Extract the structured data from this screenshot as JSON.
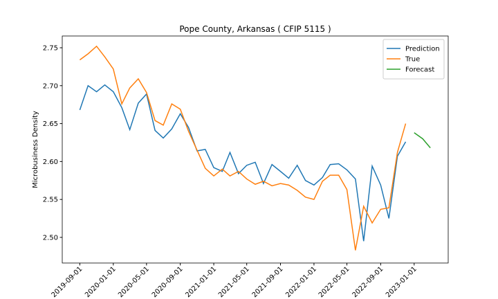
{
  "chart_data": {
    "type": "line",
    "title": "Pope County, Arkansas ( CFIP 5115 )",
    "y_label": "Microbusiness Density",
    "x": [
      "2019-09-01",
      "2019-10-01",
      "2019-11-01",
      "2019-12-01",
      "2020-01-01",
      "2020-02-01",
      "2020-03-01",
      "2020-04-01",
      "2020-05-01",
      "2020-06-01",
      "2020-07-01",
      "2020-08-01",
      "2020-09-01",
      "2020-10-01",
      "2020-11-01",
      "2020-12-01",
      "2021-01-01",
      "2021-02-01",
      "2021-03-01",
      "2021-04-01",
      "2021-05-01",
      "2021-06-01",
      "2021-07-01",
      "2021-08-01",
      "2021-09-01",
      "2021-10-01",
      "2021-11-01",
      "2021-12-01",
      "2022-01-01",
      "2022-02-01",
      "2022-03-01",
      "2022-04-01",
      "2022-05-01",
      "2022-06-01",
      "2022-07-01",
      "2022-08-01",
      "2022-09-01",
      "2022-10-01",
      "2022-11-01",
      "2022-12-01",
      "2023-01-01",
      "2023-02-01",
      "2023-03-01"
    ],
    "series": [
      {
        "name": "Prediction",
        "color": "#1f77b4",
        "values": [
          2.668,
          2.7,
          2.692,
          2.701,
          2.692,
          2.671,
          2.642,
          2.677,
          2.689,
          2.641,
          2.631,
          2.643,
          2.663,
          2.645,
          2.614,
          2.616,
          2.592,
          2.587,
          2.612,
          2.584,
          2.595,
          2.599,
          2.571,
          2.596,
          2.587,
          2.578,
          2.595,
          2.575,
          2.569,
          2.579,
          2.596,
          2.597,
          2.589,
          2.577,
          2.495,
          2.594,
          2.569,
          2.525,
          2.607,
          2.626,
          null,
          null,
          null
        ]
      },
      {
        "name": "True",
        "color": "#ff7f0e",
        "values": [
          2.734,
          2.742,
          2.752,
          2.738,
          2.722,
          2.676,
          2.697,
          2.709,
          2.691,
          2.654,
          2.648,
          2.676,
          2.669,
          2.64,
          2.615,
          2.591,
          2.581,
          2.59,
          2.581,
          2.587,
          2.577,
          2.57,
          2.574,
          2.568,
          2.571,
          2.569,
          2.562,
          2.553,
          2.55,
          2.574,
          2.582,
          2.582,
          2.563,
          2.483,
          2.541,
          2.519,
          2.537,
          2.539,
          2.612,
          2.65,
          null,
          null,
          null
        ]
      },
      {
        "name": "Forecast",
        "color": "#2ca02c",
        "values": [
          null,
          null,
          null,
          null,
          null,
          null,
          null,
          null,
          null,
          null,
          null,
          null,
          null,
          null,
          null,
          null,
          null,
          null,
          null,
          null,
          null,
          null,
          null,
          null,
          null,
          null,
          null,
          null,
          null,
          null,
          null,
          null,
          null,
          null,
          null,
          null,
          null,
          null,
          null,
          null,
          2.638,
          2.63,
          2.618
        ]
      }
    ],
    "xlim": [
      "2019-06-29",
      "2023-05-05"
    ],
    "xticks": [
      "2019-09-01",
      "2020-01-01",
      "2020-05-01",
      "2020-09-01",
      "2021-01-01",
      "2021-05-01",
      "2021-09-01",
      "2022-01-01",
      "2022-05-01",
      "2022-09-01",
      "2023-01-01"
    ],
    "ylim": [
      2.4662,
      2.7655
    ],
    "yticks": [
      {
        "value": 2.5,
        "label": "2.50"
      },
      2.55,
      {
        "value": 2.6,
        "label": "2.60"
      },
      2.65,
      {
        "value": 2.7,
        "label": "2.70"
      },
      2.75
    ],
    "legend": "upper right"
  }
}
